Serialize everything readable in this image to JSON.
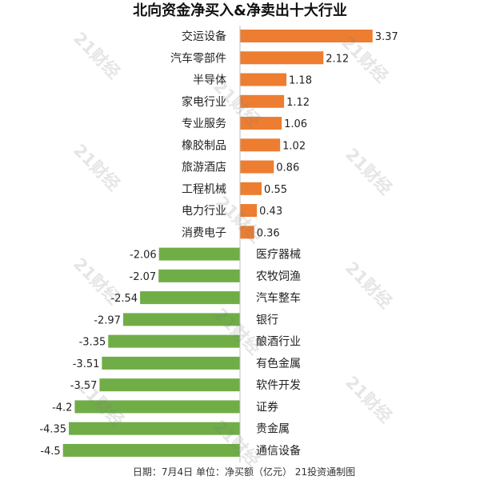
{
  "chart_data": {
    "type": "bar",
    "horizontal": true,
    "title": "北向资金净买入&净卖出十大行业",
    "categories": [
      "交运设备",
      "汽车零部件",
      "半导体",
      "家电行业",
      "专业服务",
      "橡胶制品",
      "旅游酒店",
      "工程机械",
      "电力行业",
      "消费电子",
      "医疗器械",
      "农牧饲渔",
      "汽车整车",
      "银行",
      "酿酒行业",
      "有色金属",
      "软件开发",
      "证券",
      "贵金属",
      "通信设备"
    ],
    "values": [
      3.37,
      2.12,
      1.18,
      1.12,
      1.06,
      1.02,
      0.86,
      0.55,
      0.43,
      0.36,
      -2.06,
      -2.07,
      -2.54,
      -2.97,
      -3.35,
      -3.51,
      -3.57,
      -4.2,
      -4.35,
      -4.5
    ],
    "xlim": [
      -6.1,
      6.1
    ],
    "grid": false,
    "legend": false,
    "data_labels": true,
    "colors": {
      "positive": "#ED7D31",
      "negative": "#70AD47",
      "axis": "#BFBFBF"
    }
  },
  "footer": "日期：7月4日 单位：净买额（亿元） 21投资通制图",
  "watermark": "21财经"
}
